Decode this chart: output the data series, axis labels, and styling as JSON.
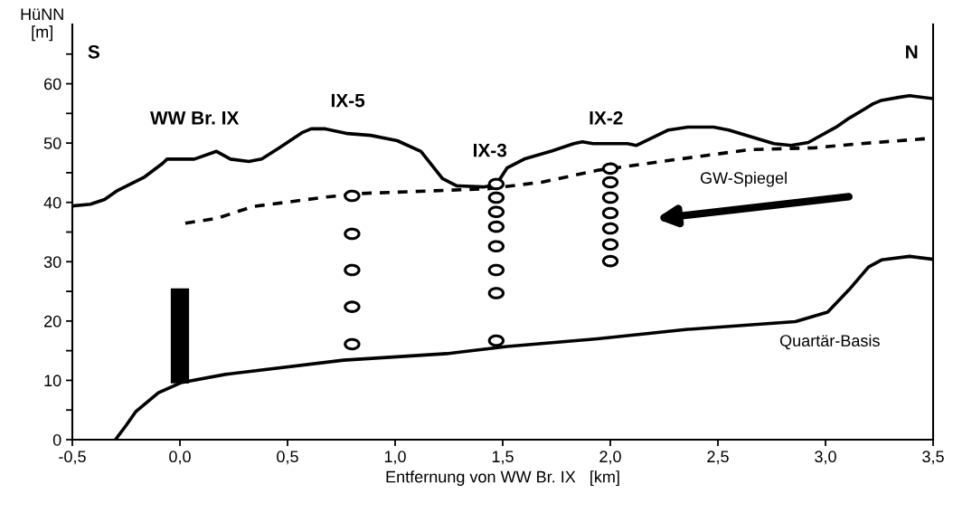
{
  "chart_data": {
    "type": "line",
    "xlabel": "Entfernung von WW Br. IX   [km]",
    "ylabel": "HüNN\n[m]",
    "xlim": [
      -0.5,
      3.5
    ],
    "ylim": [
      0,
      70
    ],
    "xticks": [
      {
        "value": -0.5,
        "label": "-0,5"
      },
      {
        "value": 0,
        "label": "0,0"
      },
      {
        "value": 0.5,
        "label": "0,5"
      },
      {
        "value": 1,
        "label": "1,0"
      },
      {
        "value": 1.5,
        "label": "1,5"
      },
      {
        "value": 2,
        "label": "2,0"
      },
      {
        "value": 2.5,
        "label": "2,5"
      },
      {
        "value": 3,
        "label": "3,0"
      },
      {
        "value": 3.5,
        "label": "3,5"
      }
    ],
    "yticks": [
      0,
      {
        "value": 5,
        "label": null
      },
      10,
      {
        "value": 15,
        "label": null
      },
      20,
      {
        "value": 25,
        "label": null
      },
      30,
      {
        "value": 35,
        "label": null
      },
      40,
      {
        "value": 45,
        "label": null
      },
      50,
      {
        "value": 55,
        "label": null
      },
      60,
      {
        "value": 65,
        "label": null
      }
    ],
    "grid": false,
    "legend": false,
    "series": [
      {
        "color": "#000000",
        "line_style": "solid",
        "x": [
          -0.5,
          -0.416,
          -0.35,
          -0.29,
          -0.164,
          -0.08,
          -0.06,
          0.067,
          0.17,
          0.235,
          0.32,
          0.38,
          0.466,
          0.57,
          0.61,
          0.676,
          0.78,
          0.886,
          1.01,
          1.12,
          1.22,
          1.286,
          1.41,
          1.47,
          1.52,
          1.6,
          1.73,
          1.83,
          1.87,
          1.92,
          2.08,
          2.12,
          2.27,
          2.36,
          2.48,
          2.55,
          2.76,
          2.84,
          2.92,
          3.05,
          3.11,
          3.18,
          3.22,
          3.26,
          3.34,
          3.39,
          3.5
        ],
        "values": [
          39.4,
          39.7,
          40.5,
          42,
          44.3,
          46.6,
          47.3,
          47.3,
          48.6,
          47.3,
          46.9,
          47.3,
          49.3,
          51.8,
          52.4,
          52.4,
          51.6,
          51.3,
          50.4,
          48.6,
          44,
          42.8,
          42.6,
          43,
          45.8,
          47.3,
          48.7,
          49.9,
          50.2,
          49.9,
          49.9,
          49.6,
          52.2,
          52.7,
          52.7,
          52.2,
          49.9,
          49.6,
          50.1,
          52.7,
          54.2,
          55.7,
          56.6,
          57.2,
          57.7,
          58,
          57.5
        ]
      },
      {
        "color": "#000000",
        "line_style": "dashed",
        "x": [
          0.025,
          0.17,
          0.34,
          0.68,
          0.84,
          1.43,
          1.68,
          1.94,
          2.32,
          2.65,
          2.95,
          3.16,
          3.49
        ],
        "values": [
          36.5,
          37.3,
          39.3,
          40.9,
          41.5,
          42.3,
          43.4,
          45.4,
          47.3,
          48.9,
          49.2,
          49.9,
          50.8
        ]
      },
      {
        "color": "#000000",
        "line_style": "solid",
        "x": [
          -0.3,
          -0.25,
          -0.206,
          -0.1,
          0.004,
          0.21,
          0.76,
          1.24,
          1.52,
          1.94,
          2.36,
          2.86,
          3.01,
          3.11,
          3.2,
          3.26,
          3.39,
          3.5
        ],
        "values": [
          0,
          2.4,
          4.7,
          7.9,
          9.6,
          11,
          13.4,
          14.5,
          15.7,
          17,
          18.6,
          19.9,
          21.5,
          25.3,
          29.1,
          30.3,
          30.9,
          30.4
        ]
      },
      {
        "type": "bar",
        "color": "#000000",
        "x": [
          0
        ],
        "base": [
          9.5
        ],
        "values": [
          16
        ]
      },
      {
        "type": "scatter",
        "color": "#000000",
        "marker": "circle",
        "x": [
          0.8,
          0.8,
          0.8,
          0.8,
          0.8,
          1.47,
          1.47,
          1.47,
          1.47,
          1.47,
          1.47,
          1.47,
          1.47,
          2.0,
          2.0,
          2.0,
          2.0,
          2.0,
          2.0,
          2.0
        ],
        "values": [
          41.1,
          34.7,
          28.6,
          22.4,
          16.1,
          43.1,
          40.8,
          38.4,
          35.9,
          32.6,
          28.6,
          24.7,
          16.7,
          45.7,
          43.4,
          40.8,
          38.2,
          35.6,
          32.9,
          30.1
        ]
      }
    ],
    "annotations": [
      "S",
      "N",
      "WW Br. IX",
      "IX-5",
      "IX-3",
      "IX-2",
      "GW-Spiegel",
      "Quartär-Basis"
    ]
  }
}
